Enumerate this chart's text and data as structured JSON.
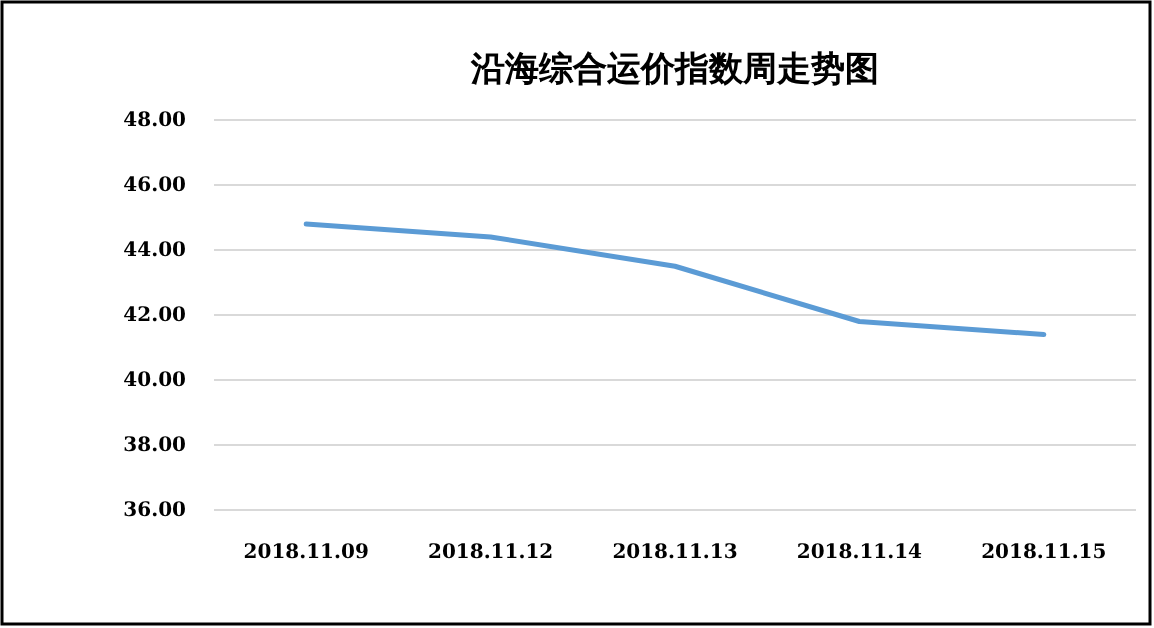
{
  "chart_data": {
    "type": "line",
    "title": "沿海综合运价指数周走势图",
    "categories": [
      "2018.11.09",
      "2018.11.12",
      "2018.11.13",
      "2018.11.14",
      "2018.11.15"
    ],
    "series": [
      {
        "color": "#5b9bd5",
        "values": [
          44.8,
          44.4,
          43.5,
          41.8,
          41.4
        ]
      }
    ],
    "ylim": [
      36,
      48
    ],
    "yticks": [
      {
        "value": 36,
        "label": "36.00"
      },
      {
        "value": 38,
        "label": "38.00"
      },
      {
        "value": 40,
        "label": "40.00"
      },
      {
        "value": 42,
        "label": "42.00"
      },
      {
        "value": 44,
        "label": "44.00"
      },
      {
        "value": 46,
        "label": "46.00"
      },
      {
        "value": 48,
        "label": "48.00"
      }
    ],
    "grid": "y",
    "marker": "none",
    "line_style": "solid"
  }
}
